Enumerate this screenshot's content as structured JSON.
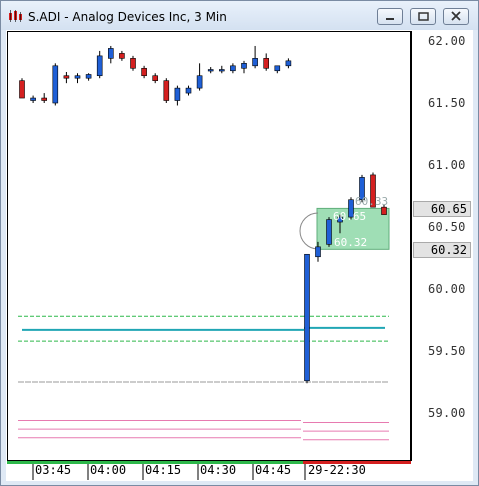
{
  "window": {
    "title": "S.ADI - Analog Devices Inc, 3 Min",
    "buttons": [
      "minimize",
      "maximize",
      "close"
    ]
  },
  "colors": {
    "up_candle": "#1f5fd6",
    "down_candle": "#d42020",
    "teal_line": "#20a6b4",
    "green_band": "#2db84a",
    "pink_band": "#e77ab0",
    "grey_line": "#9a9a9a",
    "highlight_box": "#7fd39c"
  },
  "price_axis": {
    "labels": [
      "62.00",
      "61.50",
      "61.00",
      "60.50",
      "60.00",
      "59.50",
      "59.00"
    ],
    "current_high_box": "60.65",
    "current_low_box": "60.32"
  },
  "time_axis": {
    "labels": [
      "03:45",
      "04:00",
      "04:15",
      "04:30",
      "04:45",
      "29-22:30"
    ]
  },
  "annotations": {
    "box_top_label": "60.65",
    "box_bottom_label": "60.32",
    "peak_label": "60.33"
  },
  "chart_data": {
    "type": "candlestick",
    "ylim": [
      58.7,
      62.1
    ],
    "session1": [
      {
        "o": 61.68,
        "h": 61.7,
        "l": 61.54,
        "c": 61.54
      },
      {
        "o": 61.52,
        "h": 61.56,
        "l": 61.5,
        "c": 61.54
      },
      {
        "o": 61.54,
        "h": 61.58,
        "l": 61.5,
        "c": 61.52
      },
      {
        "o": 61.5,
        "h": 61.82,
        "l": 61.48,
        "c": 61.8
      },
      {
        "o": 61.72,
        "h": 61.75,
        "l": 61.66,
        "c": 61.7
      },
      {
        "o": 61.7,
        "h": 61.74,
        "l": 61.66,
        "c": 61.72
      },
      {
        "o": 61.7,
        "h": 61.74,
        "l": 61.68,
        "c": 61.73
      },
      {
        "o": 61.72,
        "h": 61.92,
        "l": 61.7,
        "c": 61.88
      },
      {
        "o": 61.86,
        "h": 61.96,
        "l": 61.82,
        "c": 61.94
      },
      {
        "o": 61.9,
        "h": 61.92,
        "l": 61.84,
        "c": 61.86
      },
      {
        "o": 61.86,
        "h": 61.88,
        "l": 61.76,
        "c": 61.78
      },
      {
        "o": 61.78,
        "h": 61.8,
        "l": 61.7,
        "c": 61.72
      },
      {
        "o": 61.72,
        "h": 61.74,
        "l": 61.66,
        "c": 61.68
      },
      {
        "o": 61.68,
        "h": 61.7,
        "l": 61.5,
        "c": 61.52
      },
      {
        "o": 61.52,
        "h": 61.64,
        "l": 61.48,
        "c": 61.62
      },
      {
        "o": 61.58,
        "h": 61.64,
        "l": 61.56,
        "c": 61.62
      },
      {
        "o": 61.62,
        "h": 61.82,
        "l": 61.6,
        "c": 61.72
      },
      {
        "o": 61.76,
        "h": 61.79,
        "l": 61.74,
        "c": 61.77
      },
      {
        "o": 61.76,
        "h": 61.8,
        "l": 61.74,
        "c": 61.77
      },
      {
        "o": 61.76,
        "h": 61.82,
        "l": 61.74,
        "c": 61.8
      },
      {
        "o": 61.78,
        "h": 61.84,
        "l": 61.74,
        "c": 61.82
      },
      {
        "o": 61.8,
        "h": 61.96,
        "l": 61.78,
        "c": 61.86
      },
      {
        "o": 61.86,
        "h": 61.9,
        "l": 61.76,
        "c": 61.78
      },
      {
        "o": 61.76,
        "h": 61.8,
        "l": 61.74,
        "c": 61.8
      },
      {
        "o": 61.8,
        "h": 61.86,
        "l": 61.78,
        "c": 61.84
      }
    ],
    "session2": [
      {
        "o": 59.26,
        "h": 60.28,
        "l": 59.24,
        "c": 60.28
      },
      {
        "o": 60.26,
        "h": 60.38,
        "l": 60.22,
        "c": 60.34
      },
      {
        "o": 60.36,
        "h": 60.58,
        "l": 60.34,
        "c": 60.56
      },
      {
        "o": 60.54,
        "h": 60.6,
        "l": 60.45,
        "c": 60.58
      },
      {
        "o": 60.58,
        "h": 60.74,
        "l": 60.56,
        "c": 60.72
      },
      {
        "o": 60.72,
        "h": 60.92,
        "l": 60.7,
        "c": 60.9
      },
      {
        "o": 60.92,
        "h": 60.94,
        "l": 60.66,
        "c": 60.66
      },
      {
        "o": 60.66,
        "h": 60.68,
        "l": 60.6,
        "c": 60.6
      }
    ],
    "lines": {
      "green_upper": 59.78,
      "green_lower": 59.58,
      "teal_mid": 59.67,
      "grey": 59.25,
      "pink_1": 58.94,
      "pink_2": 58.87,
      "pink_3": 58.8
    }
  }
}
